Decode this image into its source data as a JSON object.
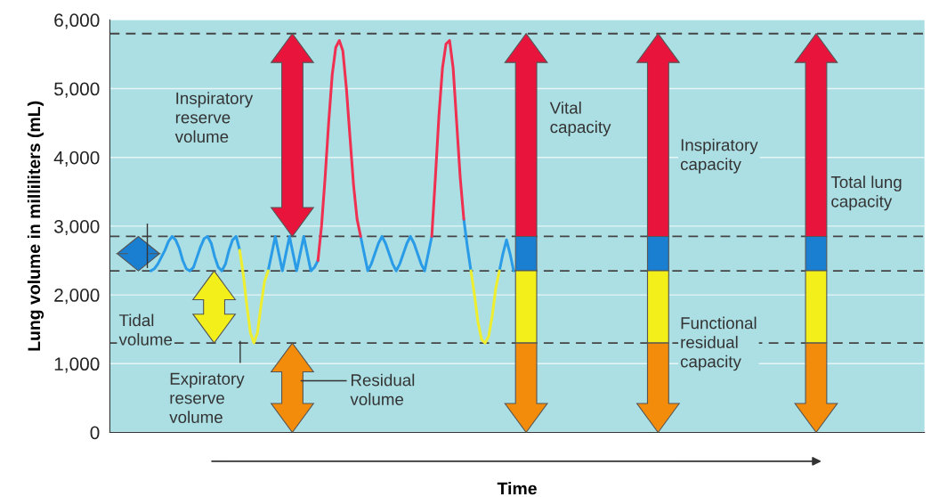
{
  "chart_data": {
    "type": "line",
    "xlabel": "Time",
    "ylabel": "Lung volume in milliliters (mL)",
    "categories": [
      null,
      null,
      null,
      null,
      null,
      null,
      null,
      null,
      null,
      null,
      null,
      null,
      null,
      null,
      null,
      null,
      null,
      null,
      null,
      null,
      null,
      null,
      null,
      null,
      null,
      null,
      null,
      null,
      null,
      null,
      null,
      null,
      null,
      null,
      null,
      null,
      null,
      null,
      null,
      null,
      null,
      null,
      null,
      null,
      null,
      null,
      null,
      null,
      null,
      null,
      null,
      null,
      null,
      null,
      null,
      null,
      null,
      null,
      null,
      null,
      null,
      null,
      null,
      null,
      null,
      null,
      null,
      null,
      null,
      null,
      null,
      null,
      null,
      null,
      null,
      null,
      null,
      null,
      null,
      null,
      null,
      null,
      null,
      null,
      null,
      null,
      null,
      null,
      null,
      null,
      null,
      null,
      null,
      null,
      null,
      null,
      null,
      null,
      null,
      null,
      null,
      null,
      null,
      null,
      null,
      null,
      null,
      null,
      null,
      null,
      null,
      null,
      null,
      null,
      null,
      null,
      null,
      null,
      null,
      null,
      null,
      null,
      null,
      null,
      null,
      null,
      null,
      null,
      null,
      null,
      null,
      null,
      null,
      null,
      null,
      null,
      null,
      null,
      null,
      null,
      null,
      null,
      null,
      null,
      null,
      null,
      null,
      null,
      null,
      null,
      null,
      null,
      null,
      null,
      null,
      null,
      null,
      null,
      null,
      null,
      null,
      null,
      null,
      null,
      null,
      null,
      null,
      null,
      null,
      null,
      null,
      null,
      null,
      null,
      null,
      null,
      null,
      null,
      null,
      null,
      null,
      null,
      null,
      null,
      null,
      null,
      null,
      null,
      null,
      null,
      null,
      null,
      null,
      null,
      null,
      null,
      null,
      null,
      null,
      null,
      null,
      null,
      null,
      null,
      null,
      null,
      null,
      null,
      null,
      null,
      null,
      null,
      null,
      null,
      null,
      null,
      null,
      null,
      null,
      null,
      null,
      null,
      null,
      null,
      null,
      null,
      null,
      null,
      null
    ],
    "ylim": [
      0,
      6000
    ],
    "yticks": [
      {
        "value": 0,
        "label": "0"
      },
      {
        "value": 1000,
        "label": "1,000"
      },
      {
        "value": 2000,
        "label": "2,000"
      },
      {
        "value": 3000,
        "label": "3,000"
      },
      {
        "value": 4000,
        "label": "4,000"
      },
      {
        "value": 5000,
        "label": "5,000"
      },
      {
        "value": 6000,
        "label": "6,000"
      }
    ],
    "tick_labels": "y",
    "grid": "y",
    "legend": false,
    "series": [
      {
        "color": "#2a9be6",
        "values": [
          null,
          null,
          null,
          null,
          null,
          null,
          null,
          null,
          null,
          null,
          null,
          2350,
          2380,
          2450,
          2550,
          2650,
          2780,
          2850,
          2800,
          2680,
          2500,
          2380,
          2350,
          2400,
          2550,
          2700,
          2820,
          2850,
          2750,
          2550,
          2400,
          2350,
          2450,
          2650,
          2800,
          2850,
          2650,
          null,
          null,
          null,
          null,
          null,
          null,
          null,
          2350,
          2600,
          2850,
          2600,
          2350,
          2600,
          2850,
          2600,
          2350,
          2600,
          2850,
          2600,
          2350,
          2400,
          2500,
          null,
          null,
          null,
          null,
          null,
          null,
          null,
          null,
          null,
          null,
          null,
          2850,
          2600,
          2350,
          2450,
          2600,
          2750,
          2850,
          2750,
          2600,
          2450,
          2350,
          2450,
          2600,
          2750,
          2850,
          2750,
          2600,
          2450,
          2350,
          2600,
          2850,
          null,
          null,
          null,
          null,
          null,
          null,
          null,
          null,
          3100,
          2700,
          2350,
          null,
          null,
          null,
          null,
          null,
          null,
          null,
          2350,
          2600,
          2800,
          2600,
          2350,
          null,
          null,
          null,
          null,
          null,
          null,
          null,
          null,
          null,
          null,
          null,
          null,
          null,
          null,
          null,
          null,
          null,
          null,
          null,
          null,
          null,
          null,
          null,
          null,
          null,
          null,
          null,
          null,
          null,
          null,
          null,
          null,
          null,
          null,
          null,
          null,
          null,
          null,
          null,
          null,
          null,
          null,
          null,
          null,
          null,
          null,
          null,
          null,
          null,
          null,
          null,
          null,
          null,
          null,
          null,
          null,
          null,
          null,
          null,
          null,
          null,
          null,
          null,
          null,
          null,
          null,
          null,
          null,
          null,
          null,
          null,
          null,
          null,
          null,
          null,
          null,
          null,
          null,
          null,
          null,
          null,
          null,
          null,
          null,
          null,
          null,
          null,
          null,
          null,
          null,
          null,
          null,
          null,
          null,
          null,
          null,
          null,
          null,
          null,
          null,
          null,
          null,
          null,
          null,
          null,
          null,
          null,
          null,
          null,
          null,
          null,
          null,
          null,
          null,
          null
        ]
      },
      {
        "color": "#eeee30",
        "values": [
          null,
          null,
          null,
          null,
          null,
          null,
          null,
          null,
          null,
          null,
          null,
          null,
          null,
          null,
          null,
          null,
          null,
          null,
          null,
          null,
          null,
          null,
          null,
          null,
          null,
          null,
          null,
          null,
          null,
          null,
          null,
          null,
          null,
          null,
          null,
          null,
          2650,
          2300,
          1850,
          1450,
          1300,
          1450,
          1850,
          2200,
          2350,
          null,
          null,
          null,
          null,
          null,
          null,
          null,
          null,
          null,
          null,
          null,
          null,
          null,
          null,
          null,
          null,
          null,
          null,
          null,
          null,
          null,
          null,
          null,
          null,
          null,
          null,
          null,
          null,
          null,
          null,
          null,
          null,
          null,
          null,
          null,
          null,
          null,
          null,
          null,
          null,
          null,
          null,
          null,
          null,
          null,
          null,
          null,
          null,
          null,
          null,
          null,
          null,
          null,
          null,
          null,
          null,
          2350,
          2000,
          1600,
          1350,
          1300,
          1400,
          1700,
          2100,
          2350,
          null,
          null,
          null,
          null,
          null,
          null,
          null,
          null,
          null,
          null,
          null,
          null,
          null,
          null,
          null,
          null,
          null,
          null,
          null,
          null,
          null,
          null,
          null,
          null,
          null,
          null,
          null,
          null,
          null,
          null,
          null,
          null,
          null,
          null,
          null,
          null,
          null,
          null,
          null,
          null,
          null,
          null,
          null,
          null,
          null,
          null,
          null,
          null,
          null,
          null,
          null,
          null,
          null,
          null,
          null,
          null,
          null,
          null,
          null,
          null,
          null,
          null,
          null,
          null,
          null,
          null,
          null,
          null,
          null,
          null,
          null,
          null,
          null,
          null,
          null,
          null,
          null,
          null,
          null,
          null,
          null,
          null,
          null,
          null,
          null,
          null,
          null,
          null,
          null,
          null,
          null,
          null,
          null,
          null,
          null,
          null,
          null,
          null,
          null,
          null,
          null,
          null,
          null,
          null,
          null,
          null,
          null,
          null,
          null,
          null,
          null,
          null,
          null,
          null,
          null,
          null,
          null,
          null,
          null
        ]
      },
      {
        "color": "#ef3050",
        "values": [
          null,
          null,
          null,
          null,
          null,
          null,
          null,
          null,
          null,
          null,
          null,
          null,
          null,
          null,
          null,
          null,
          null,
          null,
          null,
          null,
          null,
          null,
          null,
          null,
          null,
          null,
          null,
          null,
          null,
          null,
          null,
          null,
          null,
          null,
          null,
          null,
          null,
          null,
          null,
          null,
          null,
          null,
          null,
          null,
          null,
          null,
          null,
          null,
          null,
          null,
          null,
          null,
          null,
          null,
          null,
          null,
          null,
          null,
          2500,
          3000,
          3700,
          4500,
          5200,
          5600,
          5700,
          5550,
          5000,
          4300,
          3600,
          3100,
          2850,
          null,
          null,
          null,
          null,
          null,
          null,
          null,
          null,
          null,
          null,
          null,
          null,
          null,
          null,
          null,
          null,
          null,
          null,
          null,
          2850,
          3700,
          4600,
          5300,
          5650,
          5700,
          5300,
          4500,
          3700,
          3100,
          null,
          null,
          null,
          null,
          null,
          null,
          null,
          null,
          null,
          null,
          null,
          null,
          null,
          null,
          null,
          null,
          null,
          null,
          null,
          null,
          null,
          null,
          null,
          null,
          null,
          null,
          null,
          null,
          null,
          null,
          null,
          null,
          null,
          null,
          null,
          null,
          null,
          null,
          null,
          null,
          null,
          null,
          null,
          null,
          null,
          null,
          null,
          null,
          null,
          null,
          null,
          null,
          null,
          null,
          null,
          null,
          null,
          null,
          null,
          null,
          null,
          null,
          null,
          null,
          null,
          null,
          null,
          null,
          null,
          null,
          null,
          null,
          null,
          null,
          null,
          null,
          null,
          null,
          null,
          null,
          null,
          null,
          null,
          null,
          null,
          null,
          null,
          null,
          null,
          null,
          null,
          null,
          null,
          null,
          null,
          null,
          null,
          null,
          null,
          null,
          null,
          null,
          null,
          null,
          null,
          null,
          null,
          null,
          null,
          null,
          null,
          null,
          null,
          null,
          null,
          null,
          null,
          null,
          null,
          null,
          null,
          null,
          null,
          null,
          null,
          null,
          null,
          null,
          null
        ]
      }
    ],
    "ref_lines": [
      {
        "axis": "y",
        "value": 5800,
        "color": "#444444",
        "line_style": "dashed"
      },
      {
        "axis": "y",
        "value": 2850,
        "color": "#444444",
        "line_style": "dashed"
      },
      {
        "axis": "y",
        "value": 2350,
        "color": "#444444",
        "line_style": "dashed"
      },
      {
        "axis": "y",
        "value": 1300,
        "color": "#444444",
        "line_style": "dashed"
      }
    ],
    "annotations": [
      "Inspiratory\nreserve\nvolume",
      "Tidal\nvolume",
      "Expiratory\nreserve\nvolume",
      "Residual\nvolume",
      "Vital\ncapacity",
      "Inspiratory\ncapacity",
      "Total lung\ncapacity",
      "Functional\nresidual\ncapacity"
    ]
  }
}
